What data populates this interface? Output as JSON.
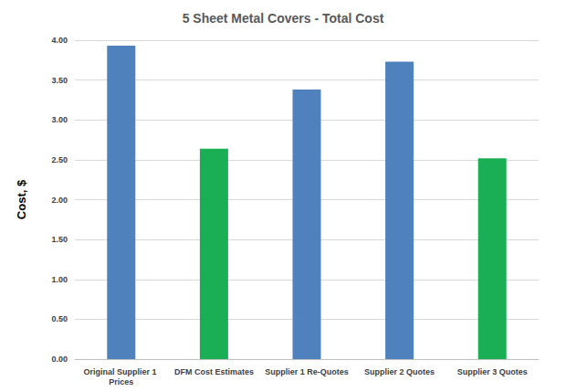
{
  "chart_data": {
    "type": "bar",
    "title": "5 Sheet Metal Covers - Total Cost",
    "y_label": "Cost, $",
    "categories": [
      "Original Supplier 1 Prices",
      "DFM Cost Estimates",
      "Supplier 1 Re-Quotes",
      "Supplier 2 Quotes",
      "Supplier 3 Quotes"
    ],
    "values": [
      3.93,
      2.64,
      3.38,
      3.73,
      2.52
    ],
    "colors": [
      "#4f81bd",
      "#1aaf54",
      "#4f81bd",
      "#4f81bd",
      "#1aaf54"
    ],
    "ylim": [
      0,
      4
    ],
    "yticks": [
      {
        "value": 0,
        "label": "0.00"
      },
      {
        "value": 0.5,
        "label": "0.50"
      },
      {
        "value": 1,
        "label": "1.00"
      },
      {
        "value": 1.5,
        "label": "1.50"
      },
      {
        "value": 2,
        "label": "2.00"
      },
      {
        "value": 2.5,
        "label": "2.50"
      },
      {
        "value": 3,
        "label": "3.00"
      },
      {
        "value": 3.5,
        "label": "3.50"
      },
      {
        "value": 4,
        "label": "4.00"
      }
    ],
    "grid": true
  }
}
